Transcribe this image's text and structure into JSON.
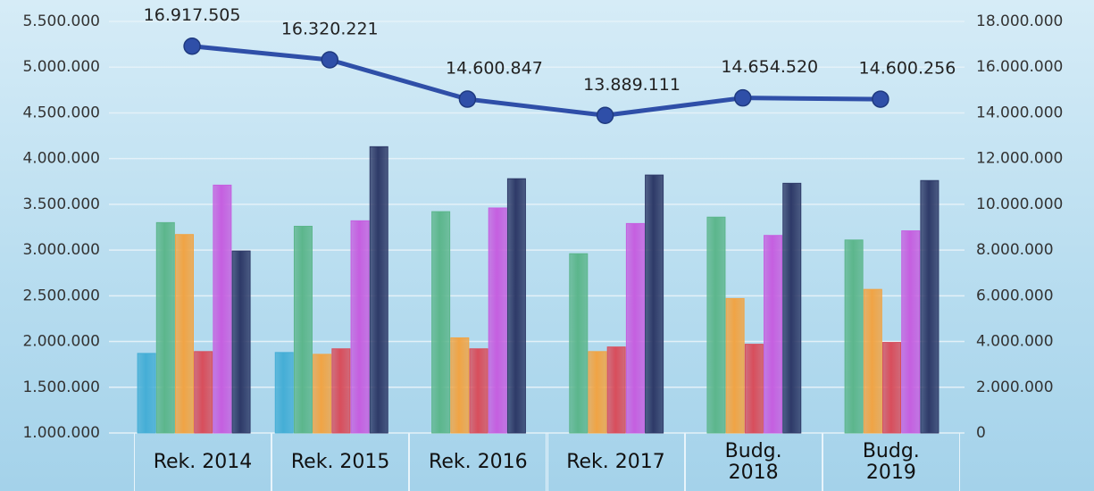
{
  "chart_data": {
    "type": "bar",
    "categories": [
      "Rek. 2014",
      "Rek. 2015",
      "Rek. 2016",
      "Rek. 2017",
      "Budg. 2018",
      "Budg. 2019"
    ],
    "series": [
      {
        "color": "#45aed6",
        "values": [
          1870000,
          1880000,
          null,
          null,
          null,
          null
        ]
      },
      {
        "color": "#5cb68c",
        "values": [
          3300000,
          3260000,
          3420000,
          2960000,
          3360000,
          3110000
        ]
      },
      {
        "color": "#f0a445",
        "values": [
          3170000,
          1860000,
          2040000,
          1890000,
          2470000,
          2570000
        ]
      },
      {
        "color": "#d84e5c",
        "values": [
          1890000,
          1920000,
          1920000,
          1940000,
          1970000,
          1990000
        ]
      },
      {
        "color": "#c55fe0",
        "values": [
          3710000,
          3320000,
          3460000,
          3290000,
          3160000,
          3210000
        ]
      },
      {
        "color": "#2e3a68",
        "values": [
          2990000,
          4130000,
          3780000,
          3820000,
          3730000,
          3760000
        ]
      },
      {
        "type": "line",
        "axis": "y2",
        "color": "#2f4fa8",
        "values": [
          16917505,
          16320221,
          14600847,
          13889111,
          14654520,
          14600256
        ],
        "value_labels": [
          "16.917.505",
          "16.320.221",
          "14.600.847",
          "13.889.111",
          "14.654.520",
          "14.600.256"
        ]
      }
    ],
    "ylim": [
      1000000,
      5500000
    ],
    "yticks": [
      {
        "value": 1000000,
        "label": "1.000.000"
      },
      {
        "value": 1500000,
        "label": "1.500.000"
      },
      {
        "value": 2000000,
        "label": "2.000.000"
      },
      {
        "value": 2500000,
        "label": "2.500.000"
      },
      {
        "value": 3000000,
        "label": "3.000.000"
      },
      {
        "value": 3500000,
        "label": "3.500.000"
      },
      {
        "value": 4000000,
        "label": "4.000.000"
      },
      {
        "value": 4500000,
        "label": "4.500.000"
      },
      {
        "value": 5000000,
        "label": "5.000.000"
      },
      {
        "value": 5500000,
        "label": "5.500.000"
      }
    ],
    "y2lim": [
      0,
      18000000
    ],
    "y2ticks": [
      0,
      {
        "value": 2000000,
        "label": "2.000.000"
      },
      {
        "value": 4000000,
        "label": "4.000.000"
      },
      {
        "value": 6000000,
        "label": "6.000.000"
      },
      {
        "value": 8000000,
        "label": "8.000.000"
      },
      {
        "value": 10000000,
        "label": "10.000.000"
      },
      {
        "value": 12000000,
        "label": "12.000.000"
      },
      {
        "value": 14000000,
        "label": "14.000.000"
      },
      {
        "value": 16000000,
        "label": "16.000.000"
      },
      {
        "value": 18000000,
        "label": "18.000.000"
      }
    ],
    "grid": true
  }
}
